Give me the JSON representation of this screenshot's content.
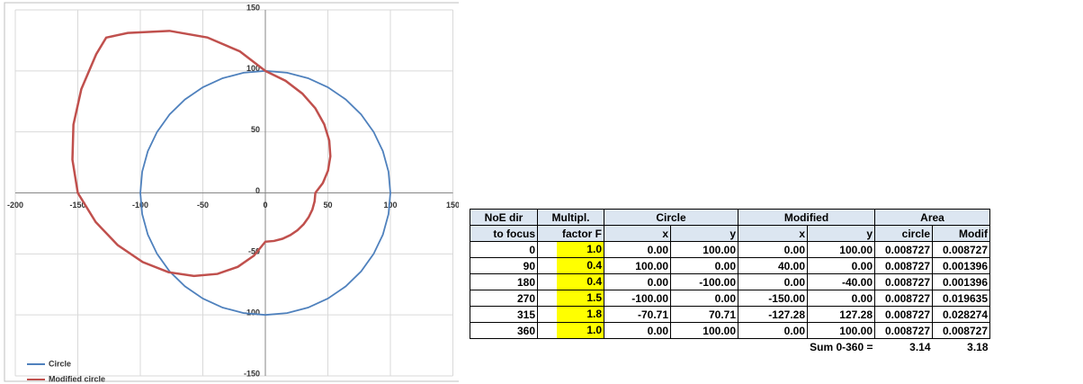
{
  "chart_data": {
    "type": "scatter",
    "xlim": [
      -200,
      150
    ],
    "ylim": [
      -150,
      150
    ],
    "xticks": [
      -200,
      -150,
      -100,
      -50,
      0,
      50,
      100,
      150
    ],
    "yticks": [
      -150,
      -100,
      -50,
      0,
      50,
      100,
      150
    ],
    "grid": true,
    "legend": "lower left",
    "series": [
      {
        "name": "Circle",
        "color": "#4f81bd",
        "x": [
          0,
          17.4,
          34.2,
          50,
          64.3,
          76.6,
          86.6,
          94.0,
          98.5,
          100,
          98.5,
          94.0,
          86.6,
          76.6,
          64.3,
          50,
          34.2,
          17.4,
          0,
          -17.4,
          -34.2,
          -50,
          -64.3,
          -76.6,
          -86.6,
          -94.0,
          -98.5,
          -100,
          -98.5,
          -94.0,
          -86.6,
          -76.6,
          -64.3,
          -50,
          -34.2,
          -17.4,
          0
        ],
        "y": [
          100,
          98.5,
          94.0,
          86.6,
          76.6,
          64.3,
          50,
          34.2,
          17.4,
          0,
          -17.4,
          -34.2,
          -50,
          -64.3,
          -76.6,
          -86.6,
          -94.0,
          -98.5,
          -100,
          -98.5,
          -94.0,
          -86.6,
          -76.6,
          -64.3,
          -50,
          -34.2,
          -17.4,
          0,
          17.4,
          34.2,
          50,
          64.3,
          76.6,
          86.6,
          94.0,
          98.5,
          100
        ]
      },
      {
        "name": "Modified circle",
        "color": "#c0504d",
        "x": [
          0,
          16.2,
          29.6,
          40,
          47.1,
          51.1,
          52.0,
          50.1,
          46.0,
          40,
          39.4,
          37.6,
          34.6,
          30.6,
          25.7,
          20,
          13.7,
          6.9,
          0,
          -9.1,
          -22.0,
          -38.3,
          -57.1,
          -77.5,
          -98.1,
          -118.0,
          -135.7,
          -150,
          -154.3,
          -153.5,
          -147.2,
          -135.3,
          -127.3,
          -110.0,
          -76.7,
          -46.4,
          -20.4,
          0
        ],
        "y": [
          100,
          91.9,
          81.4,
          69.3,
          56.2,
          42.9,
          30.0,
          18.2,
          8.1,
          0,
          -6.9,
          -13.7,
          -20,
          -25.7,
          -30.6,
          -34.6,
          -37.6,
          -39.4,
          -40,
          -51.4,
          -60.6,
          -66.4,
          -68.1,
          -65.0,
          -56.7,
          -42.9,
          -23.9,
          0,
          27.2,
          55.9,
          85,
          113.6,
          127.3,
          131.1,
          132.8,
          127.4,
          116.0,
          100
        ]
      }
    ]
  },
  "table": {
    "header": [
      [
        "NoE dir",
        "Multipl.",
        "Circle",
        "Modified",
        "Area"
      ],
      [
        "to focus",
        "factor F",
        "x",
        "y",
        "x",
        "y",
        "circle",
        "Modif"
      ]
    ],
    "rows": [
      [
        "0",
        "1.0",
        "0.00",
        "100.00",
        "0.00",
        "100.00",
        "0.008727",
        "0.008727"
      ],
      [
        "90",
        "0.4",
        "100.00",
        "0.00",
        "40.00",
        "0.00",
        "0.008727",
        "0.001396"
      ],
      [
        "180",
        "0.4",
        "0.00",
        "-100.00",
        "0.00",
        "-40.00",
        "0.008727",
        "0.001396"
      ],
      [
        "270",
        "1.5",
        "-100.00",
        "0.00",
        "-150.00",
        "0.00",
        "0.008727",
        "0.019635"
      ],
      [
        "315",
        "1.8",
        "-70.71",
        "70.71",
        "-127.28",
        "127.28",
        "0.008727",
        "0.028274"
      ],
      [
        "360",
        "1.0",
        "0.00",
        "100.00",
        "0.00",
        "100.00",
        "0.008727",
        "0.008727"
      ]
    ],
    "sum": {
      "label": "Sum 0-360 =",
      "values": [
        "3.14",
        "3.18"
      ]
    }
  }
}
